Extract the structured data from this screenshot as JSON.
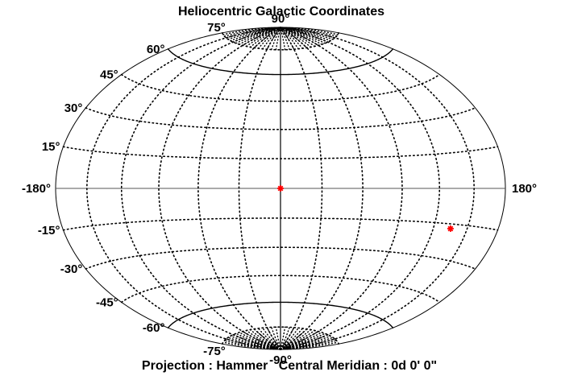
{
  "title": "Heliocentric Galactic Coordinates",
  "footer": "Projection : Hammer   Central Meridian : 0d 0' 0\"",
  "projection": "Hammer",
  "central_meridian": "0d 0' 0\"",
  "latitude_labels": [
    {
      "lat": 90,
      "text": "90°"
    },
    {
      "lat": 75,
      "text": "75°"
    },
    {
      "lat": 60,
      "text": "60°"
    },
    {
      "lat": 45,
      "text": "45°"
    },
    {
      "lat": 30,
      "text": "30°"
    },
    {
      "lat": 15,
      "text": "15°"
    },
    {
      "lat": -15,
      "text": "-15°"
    },
    {
      "lat": -30,
      "text": "-30°"
    },
    {
      "lat": -45,
      "text": "-45°"
    },
    {
      "lat": -60,
      "text": "-60°"
    },
    {
      "lat": -75,
      "text": "-75°"
    },
    {
      "lat": -90,
      "text": "-90°"
    }
  ],
  "longitude_labels": [
    {
      "lon": -180,
      "text": "-180°"
    },
    {
      "lon": 180,
      "text": "180°"
    }
  ],
  "graticule": {
    "lat_step": 15,
    "lon_step": 30
  },
  "points": [
    {
      "lon": 0,
      "lat": 0,
      "color": "#ff0000"
    },
    {
      "lon": 135,
      "lat": -17,
      "color": "#ff0000"
    }
  ],
  "colors": {
    "grid": "#000000",
    "points": "#ff0000",
    "background": "#ffffff"
  }
}
